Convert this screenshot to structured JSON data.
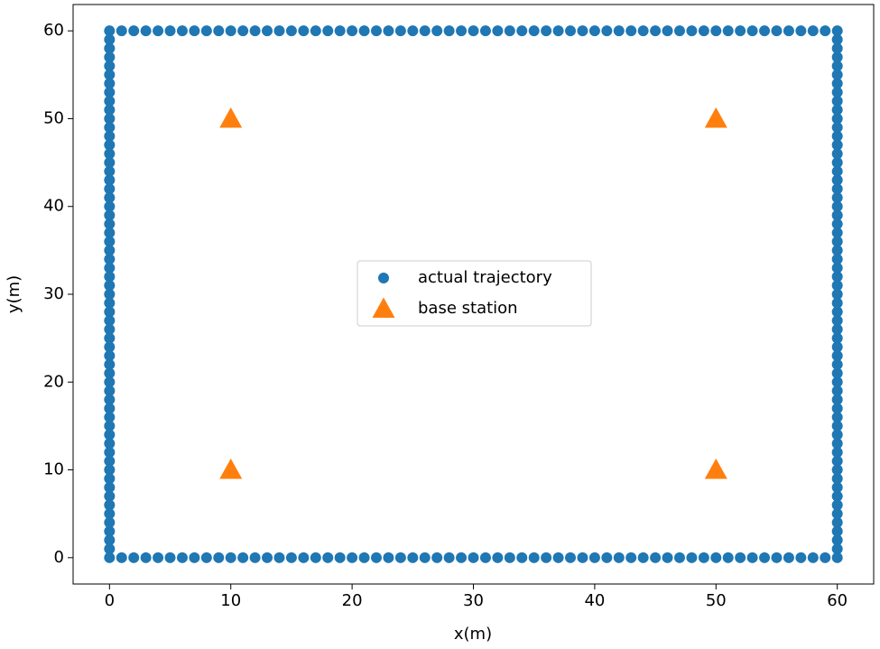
{
  "chart_data": {
    "type": "scatter",
    "xlabel": "x(m)",
    "ylabel": "y(m)",
    "xlim": [
      -3,
      63
    ],
    "ylim": [
      -3,
      63
    ],
    "xticks": [
      0,
      10,
      20,
      30,
      40,
      50,
      60
    ],
    "yticks": [
      0,
      10,
      20,
      30,
      40,
      50,
      60
    ],
    "legend": "center",
    "series": [
      {
        "name": "actual trajectory",
        "color": "#1f77b4",
        "marker": "circle",
        "x": [
          0,
          1,
          2,
          3,
          4,
          5,
          6,
          7,
          8,
          9,
          10,
          11,
          12,
          13,
          14,
          15,
          16,
          17,
          18,
          19,
          20,
          21,
          22,
          23,
          24,
          25,
          26,
          27,
          28,
          29,
          30,
          31,
          32,
          33,
          34,
          35,
          36,
          37,
          38,
          39,
          40,
          41,
          42,
          43,
          44,
          45,
          46,
          47,
          48,
          49,
          50,
          51,
          52,
          53,
          54,
          55,
          56,
          57,
          58,
          59,
          60,
          60,
          60,
          60,
          60,
          60,
          60,
          60,
          60,
          60,
          60,
          60,
          60,
          60,
          60,
          60,
          60,
          60,
          60,
          60,
          60,
          60,
          60,
          60,
          60,
          60,
          60,
          60,
          60,
          60,
          60,
          60,
          60,
          60,
          60,
          60,
          60,
          60,
          60,
          60,
          60,
          60,
          60,
          60,
          60,
          60,
          60,
          60,
          60,
          60,
          60,
          60,
          60,
          60,
          60,
          60,
          60,
          60,
          60,
          60,
          60,
          59,
          58,
          57,
          56,
          55,
          54,
          53,
          52,
          51,
          50,
          49,
          48,
          47,
          46,
          45,
          44,
          43,
          42,
          41,
          40,
          39,
          38,
          37,
          36,
          35,
          34,
          33,
          32,
          31,
          30,
          29,
          28,
          27,
          26,
          25,
          24,
          23,
          22,
          21,
          20,
          19,
          18,
          17,
          16,
          15,
          14,
          13,
          12,
          11,
          10,
          9,
          8,
          7,
          6,
          5,
          4,
          3,
          2,
          1,
          0,
          0,
          0,
          0,
          0,
          0,
          0,
          0,
          0,
          0,
          0,
          0,
          0,
          0,
          0,
          0,
          0,
          0,
          0,
          0,
          0,
          0,
          0,
          0,
          0,
          0,
          0,
          0,
          0,
          0,
          0,
          0,
          0,
          0,
          0,
          0,
          0,
          0,
          0,
          0,
          0,
          0,
          0,
          0,
          0,
          0,
          0,
          0,
          0,
          0,
          0,
          0,
          0,
          0,
          0,
          0,
          0,
          0,
          0,
          0
        ],
        "values": [
          0,
          0,
          0,
          0,
          0,
          0,
          0,
          0,
          0,
          0,
          0,
          0,
          0,
          0,
          0,
          0,
          0,
          0,
          0,
          0,
          0,
          0,
          0,
          0,
          0,
          0,
          0,
          0,
          0,
          0,
          0,
          0,
          0,
          0,
          0,
          0,
          0,
          0,
          0,
          0,
          0,
          0,
          0,
          0,
          0,
          0,
          0,
          0,
          0,
          0,
          0,
          0,
          0,
          0,
          0,
          0,
          0,
          0,
          0,
          0,
          0,
          1,
          2,
          3,
          4,
          5,
          6,
          7,
          8,
          9,
          10,
          11,
          12,
          13,
          14,
          15,
          16,
          17,
          18,
          19,
          20,
          21,
          22,
          23,
          24,
          25,
          26,
          27,
          28,
          29,
          30,
          31,
          32,
          33,
          34,
          35,
          36,
          37,
          38,
          39,
          40,
          41,
          42,
          43,
          44,
          45,
          46,
          47,
          48,
          49,
          50,
          51,
          52,
          53,
          54,
          55,
          56,
          57,
          58,
          59,
          60,
          60,
          60,
          60,
          60,
          60,
          60,
          60,
          60,
          60,
          60,
          60,
          60,
          60,
          60,
          60,
          60,
          60,
          60,
          60,
          60,
          60,
          60,
          60,
          60,
          60,
          60,
          60,
          60,
          60,
          60,
          60,
          60,
          60,
          60,
          60,
          60,
          60,
          60,
          60,
          60,
          60,
          60,
          60,
          60,
          60,
          60,
          60,
          60,
          60,
          60,
          60,
          60,
          60,
          60,
          60,
          60,
          60,
          60,
          60,
          60,
          59,
          58,
          57,
          56,
          55,
          54,
          53,
          52,
          51,
          50,
          49,
          48,
          47,
          46,
          45,
          44,
          43,
          42,
          41,
          40,
          39,
          38,
          37,
          36,
          35,
          34,
          33,
          32,
          31,
          30,
          29,
          28,
          27,
          26,
          25,
          24,
          23,
          22,
          21,
          20,
          19,
          18,
          17,
          16,
          15,
          14,
          13,
          12,
          11,
          10,
          9,
          8,
          7,
          6,
          5,
          4,
          3,
          2,
          1
        ]
      },
      {
        "name": "base station",
        "color": "#ff7f0e",
        "marker": "triangle",
        "x": [
          10,
          50,
          10,
          50
        ],
        "values": [
          50,
          50,
          10,
          10
        ]
      }
    ]
  }
}
